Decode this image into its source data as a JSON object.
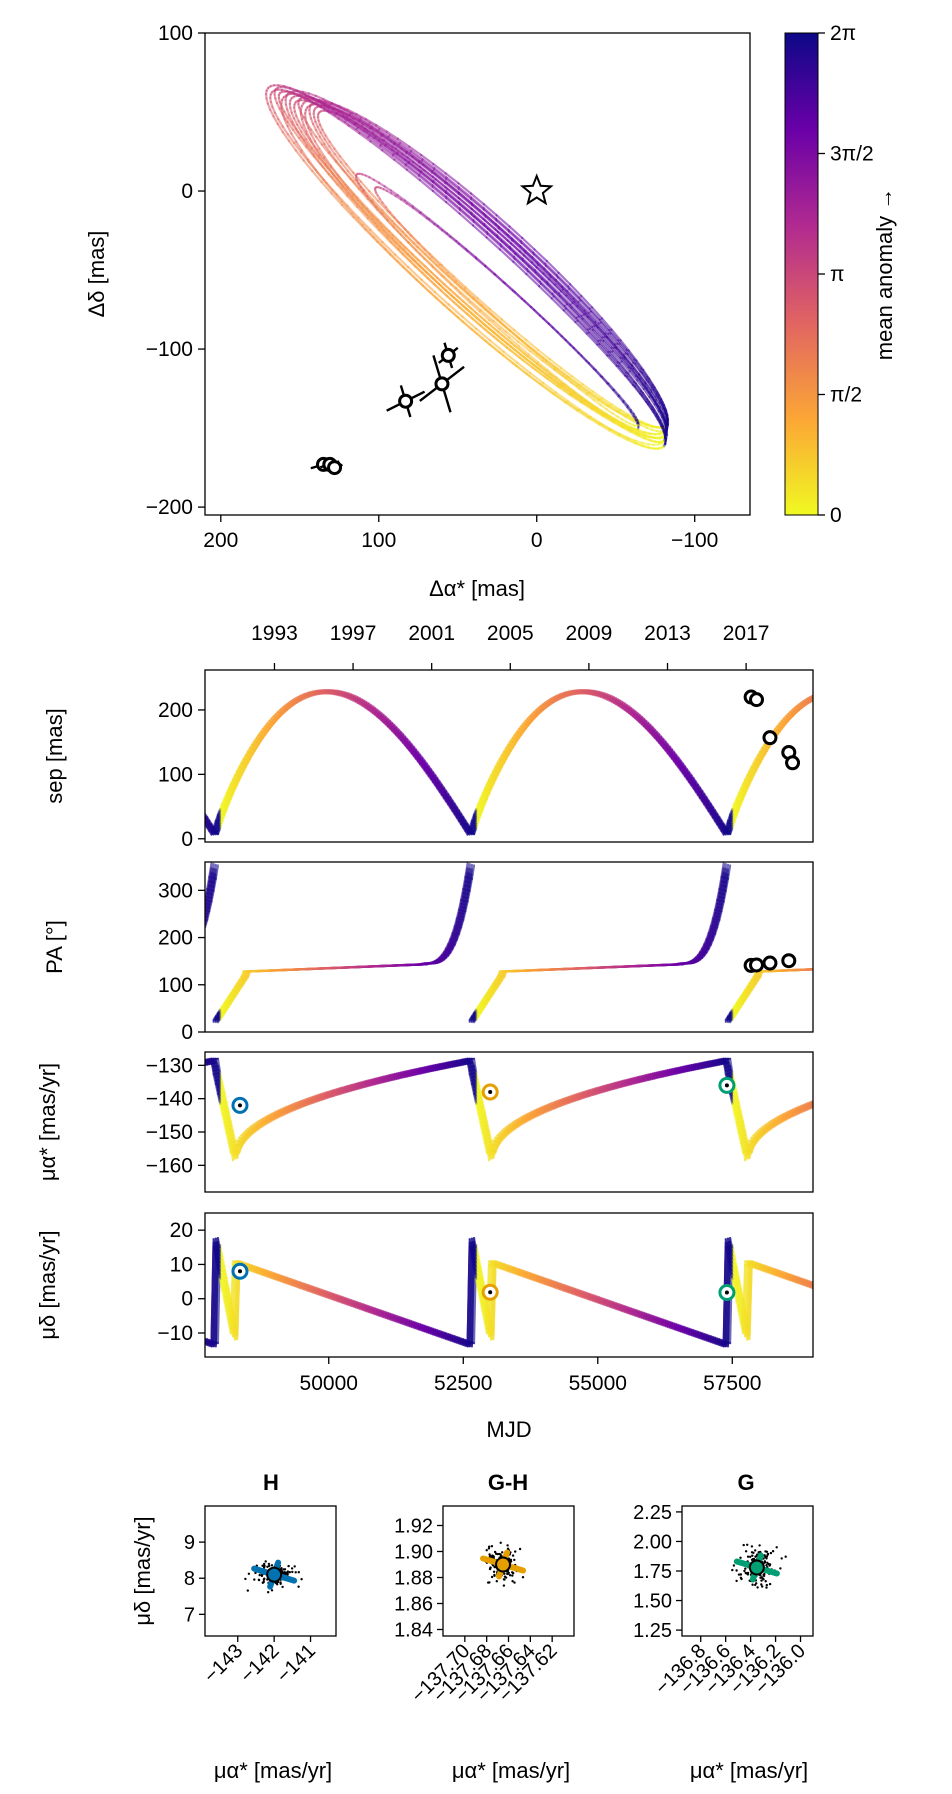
{
  "colors": {
    "orbit_gradient": [
      "#f0f921",
      "#fca636",
      "#e16462",
      "#b12a90",
      "#6a00a8",
      "#0d0887"
    ],
    "frame": "#000000",
    "hgca_H": "#0072b2",
    "hgca_GH": "#e69f00",
    "hgca_G": "#009e73"
  },
  "chart_data": [
    {
      "id": "astrometry",
      "type": "line",
      "xlabel": "Δα* [mas]",
      "ylabel": "Δδ [mas]",
      "xlim": [
        210,
        -135
      ],
      "ylim": [
        -205,
        100
      ],
      "xticks": [
        200,
        100,
        0,
        -100
      ],
      "xtick_labels": [
        "200",
        "100",
        "0",
        "−100"
      ],
      "yticks": [
        100,
        0,
        -100,
        -200
      ],
      "ytick_labels": [
        "100",
        "0",
        "−100",
        "−200"
      ],
      "host_star": {
        "x": 0,
        "y": 0
      },
      "points": [
        {
          "x": 135,
          "y": -173,
          "ex": 8,
          "ey": 4
        },
        {
          "x": 131,
          "y": -173,
          "ex": 6,
          "ey": 3
        },
        {
          "x": 128,
          "y": -175,
          "ex": 5,
          "ey": 3
        },
        {
          "x": 83,
          "y": -133,
          "ex": 12,
          "ey": 10
        },
        {
          "x": 60,
          "y": -122,
          "ex": 14,
          "ey": 18
        },
        {
          "x": 56,
          "y": -104,
          "ex": 6,
          "ey": 8
        }
      ],
      "colorbar": {
        "label": "mean anomaly →",
        "ticks": [
          "0",
          "π/2",
          "π",
          "3π/2",
          "2π"
        ]
      }
    },
    {
      "id": "separation",
      "type": "line",
      "ylabel": "sep [mas]",
      "top_axis_ticks": [
        "1993",
        "1997",
        "2001",
        "2005",
        "2009",
        "2013",
        "2017"
      ],
      "xlim": [
        47700,
        59000
      ],
      "ylim": [
        -5,
        262
      ],
      "yticks": [
        0,
        100,
        200
      ],
      "ytick_labels": [
        "0",
        "100",
        "200"
      ],
      "points": [
        {
          "mjd": 57850,
          "y": 220,
          "ey": 5
        },
        {
          "mjd": 57950,
          "y": 216,
          "ey": 4
        },
        {
          "mjd": 58200,
          "y": 157,
          "ey": 6
        },
        {
          "mjd": 58550,
          "y": 134,
          "ey": 10
        },
        {
          "mjd": 58620,
          "y": 118,
          "ey": 8
        }
      ]
    },
    {
      "id": "position_angle",
      "type": "line",
      "ylabel": "PA [°]",
      "xlim": [
        47700,
        59000
      ],
      "ylim": [
        0,
        360
      ],
      "yticks": [
        0,
        100,
        200,
        300
      ],
      "ytick_labels": [
        "0",
        "100",
        "200",
        "300"
      ],
      "points": [
        {
          "mjd": 57850,
          "y": 141
        },
        {
          "mjd": 57950,
          "y": 142
        },
        {
          "mjd": 58200,
          "y": 146
        },
        {
          "mjd": 58550,
          "y": 151
        }
      ]
    },
    {
      "id": "pm_ra",
      "type": "line",
      "ylabel": "μα* [mas/yr]",
      "xlim": [
        47700,
        59000
      ],
      "ylim": [
        -168,
        -126
      ],
      "yticks": [
        -130,
        -140,
        -150,
        -160
      ],
      "ytick_labels": [
        "−130",
        "−140",
        "−150",
        "−160"
      ],
      "points": [
        {
          "mjd": 48350,
          "y": -142,
          "series": "H"
        },
        {
          "mjd": 53000,
          "y": -138,
          "series": "G-H"
        },
        {
          "mjd": 57400,
          "y": -136,
          "series": "G"
        }
      ]
    },
    {
      "id": "pm_dec",
      "type": "line",
      "ylabel": "μδ [mas/yr]",
      "xlabel": "MJD",
      "xlim": [
        47700,
        59000
      ],
      "ylim": [
        -17,
        25
      ],
      "xticks": [
        50000,
        52500,
        55000,
        57500
      ],
      "xtick_labels": [
        "50000",
        "52500",
        "55000",
        "57500"
      ],
      "yticks": [
        20,
        10,
        0,
        -10
      ],
      "ytick_labels": [
        "20",
        "10",
        "0",
        "−10"
      ],
      "points": [
        {
          "mjd": 48350,
          "y": 8,
          "series": "H"
        },
        {
          "mjd": 53000,
          "y": 1.9,
          "series": "G-H"
        },
        {
          "mjd": 57400,
          "y": 1.8,
          "series": "G"
        }
      ]
    },
    {
      "id": "hgca_H",
      "type": "scatter",
      "title": "H",
      "xlabel": "μα* [mas/yr]",
      "ylabel": "μδ [mas/yr]",
      "xlim": [
        -143.9,
        -140.3
      ],
      "ylim": [
        6.4,
        10
      ],
      "xticks": [
        -143,
        -142,
        -141
      ],
      "xtick_labels": [
        "−143",
        "−142",
        "−141"
      ],
      "yticks": [
        7,
        8,
        9
      ],
      "ytick_labels": [
        "7",
        "8",
        "9"
      ],
      "measurement": {
        "x": -142,
        "y": 8.1
      }
    },
    {
      "id": "hgca_GH",
      "type": "scatter",
      "title": "G-H",
      "xlabel": "μα* [mas/yr]",
      "xlim": [
        -137.72,
        -137.6
      ],
      "ylim": [
        1.835,
        1.935
      ],
      "xticks": [
        -137.7,
        -137.68,
        -137.66,
        -137.64,
        -137.62
      ],
      "xtick_labels": [
        "−137.70",
        "−137.68",
        "−137.66",
        "−137.64",
        "−137.62"
      ],
      "yticks": [
        1.84,
        1.86,
        1.88,
        1.9,
        1.92
      ],
      "ytick_labels": [
        "1.84",
        "1.86",
        "1.88",
        "1.90",
        "1.92"
      ],
      "measurement": {
        "x": -137.665,
        "y": 1.89
      }
    },
    {
      "id": "hgca_G",
      "type": "scatter",
      "title": "G",
      "xlabel": "μα* [mas/yr]",
      "xlim": [
        -136.95,
        -135.9
      ],
      "ylim": [
        1.2,
        2.3
      ],
      "xticks": [
        -136.8,
        -136.6,
        -136.4,
        -136.2,
        -136.0
      ],
      "xtick_labels": [
        "−136.8",
        "−136.6",
        "−136.4",
        "−136.2",
        "−136.0"
      ],
      "yticks": [
        1.25,
        1.5,
        1.75,
        2.0,
        2.25
      ],
      "ytick_labels": [
        "1.25",
        "1.50",
        "1.75",
        "2.00",
        "2.25"
      ],
      "measurement": {
        "x": -136.35,
        "y": 1.78
      }
    }
  ]
}
